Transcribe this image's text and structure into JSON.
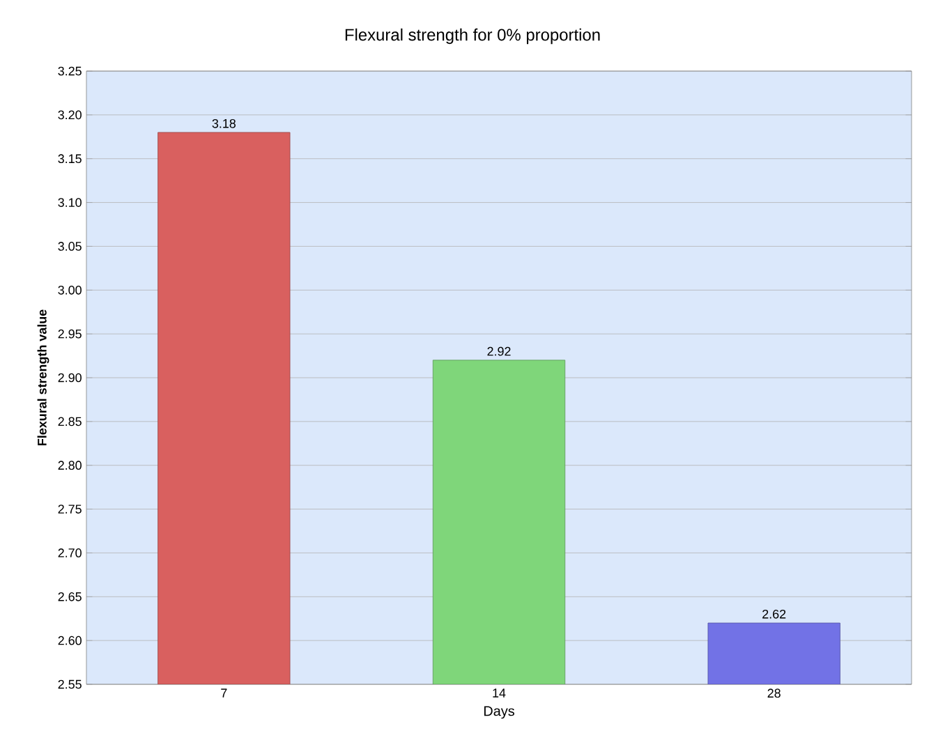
{
  "chart_data": {
    "type": "bar",
    "title": "Flexural strength for 0% proportion",
    "xlabel": "Days",
    "ylabel": "Flexural strength value",
    "categories": [
      "7",
      "14",
      "28"
    ],
    "values": [
      3.18,
      2.92,
      2.62
    ],
    "colors": [
      "#d9605f",
      "#7fd67a",
      "#7272e6"
    ],
    "ylim": [
      2.55,
      3.25
    ],
    "yticks": [
      2.55,
      {
        "value": 2.6,
        "label": "2.60"
      },
      2.65,
      {
        "value": 2.7,
        "label": "2.70"
      },
      2.75,
      {
        "value": 2.8,
        "label": "2.80"
      },
      2.85,
      {
        "value": 2.9,
        "label": "2.90"
      },
      2.95,
      {
        "value": 3.0,
        "label": "3.00"
      },
      3.05,
      {
        "value": 3.1,
        "label": "3.10"
      },
      3.15,
      {
        "value": 3.2,
        "label": "3.20"
      },
      3.25
    ],
    "grid": "y",
    "data_labels": true
  }
}
